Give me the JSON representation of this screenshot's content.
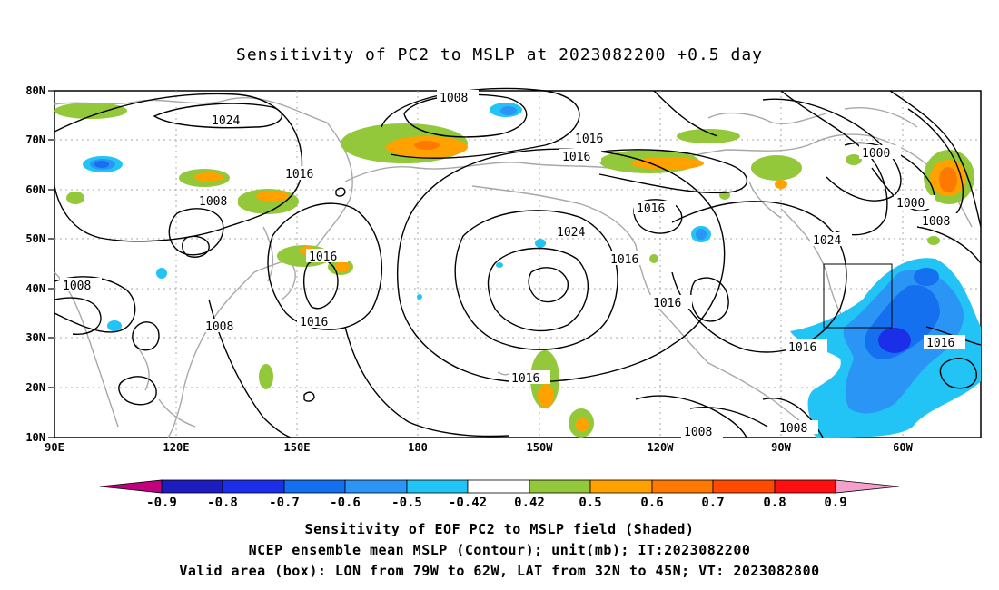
{
  "title": "Sensitivity of PC2 to MSLP at 2023082200 +0.5 day",
  "lat_labels": [
    "80N",
    "70N",
    "60N",
    "50N",
    "40N",
    "30N",
    "20N",
    "10N"
  ],
  "lon_labels": [
    "90E",
    "120E",
    "150E",
    "180",
    "150W",
    "120W",
    "90W",
    "60W"
  ],
  "contour_labels": [
    "1008",
    "1024",
    "1016",
    "1016",
    "1008",
    "1016",
    "1024",
    "1016",
    "1016",
    "1000",
    "1000",
    "1008",
    "1008",
    "1016",
    "1024",
    "1016",
    "1016",
    "1016",
    "1016",
    "1016",
    "1008",
    "1008",
    "1008"
  ],
  "colorbar": {
    "labels": [
      "-0.9",
      "-0.8",
      "-0.7",
      "-0.6",
      "-0.5",
      "-0.42",
      "0.42",
      "0.5",
      "0.6",
      "0.7",
      "0.8",
      "0.9"
    ],
    "colors": [
      "#c0007c",
      "#1d1dbf",
      "#1b2fe8",
      "#1570f0",
      "#2a95f5",
      "#22c3f5",
      "#ffffff",
      "#92c83a",
      "#ffa200",
      "#ff7800",
      "#ff4a00",
      "#ff1010",
      "#f5a0cc"
    ]
  },
  "captions": [
    "Sensitivity of EOF PC2 to MSLP field (Shaded)",
    "NCEP ensemble mean MSLP (Contour); unit(mb); IT:2023082200",
    "Valid area (box): LON from 79W to 62W, LAT from 32N to 45N; VT: 2023082800"
  ]
}
